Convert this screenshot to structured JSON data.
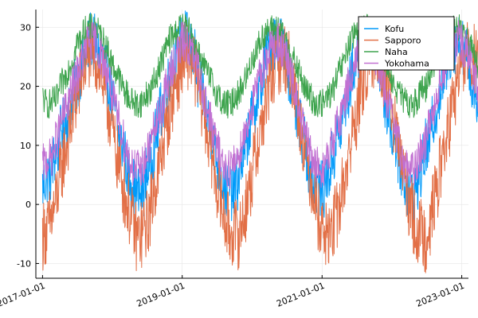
{
  "chart_data": {
    "type": "line",
    "title": "",
    "xlabel": "",
    "ylabel": "",
    "xlim": [
      "2016-11-27",
      "2023-02-05"
    ],
    "ylim": [
      -12.5,
      33
    ],
    "x_ticks": [
      "2017-01-01",
      "2019-01-01",
      "2021-01-01",
      "2023-01-01"
    ],
    "y_ticks": [
      -10,
      0,
      10,
      20,
      30
    ],
    "grid": true,
    "legend_position": "top-right",
    "x_start": "2017-01-01",
    "x_end": "2023-01-01",
    "x_step": "14 days",
    "series": [
      {
        "name": "Kofu",
        "color": "#009AFA",
        "values": [
          3.0,
          4.1,
          5.1,
          5.1,
          7.1,
          8.9,
          9.6,
          12.8,
          13.4,
          14.4,
          15.9,
          18.2,
          19.6,
          20.6,
          22.4,
          23.9,
          25.1,
          26.3,
          28.3,
          27.3,
          27.2,
          25.2,
          25.1,
          23.7,
          21.9,
          20.2,
          17.5,
          16.1,
          12.6,
          10.8,
          9.7,
          7.7,
          4.8,
          4.5,
          3.2,
          2.4,
          1.4,
          2.1,
          3.2,
          6.2,
          6.7,
          8.5,
          11.1,
          12.7,
          15.9,
          16.4,
          19.5,
          20.5,
          23.0,
          24.3,
          25.1,
          25.8,
          28.5,
          28.5,
          27.8,
          26.6,
          25.7,
          24.7,
          20.7,
          19.9,
          18.4,
          15.6,
          13.7,
          12.3,
          10.5,
          7.7,
          6.0,
          4.6,
          2.4,
          2.2,
          2.6,
          1.9,
          3.0,
          4.0,
          6.7,
          8.4,
          9.9,
          12.9,
          14.3,
          16.8,
          17.4,
          20.1,
          21.4,
          23.7,
          25.2,
          26.7,
          27.9,
          27.8,
          27.6,
          27.4,
          25.9,
          24.2,
          22.3,
          20.3,
          17.8,
          14.5,
          13.5,
          11.4,
          10.4,
          7.6,
          5.6,
          3.8,
          3.1,
          3.0,
          2.5,
          2.5,
          4.5,
          5.1,
          7.6,
          8.7,
          11.7,
          12.4,
          14.5,
          17.2,
          18.3,
          21.0,
          23.3,
          24.3,
          25.5,
          25.9,
          27.0,
          28.6,
          27.1,
          26.1,
          25.9,
          24.8,
          22.6,
          19.7,
          17.7,
          15.4,
          13.6,
          11.1,
          10.7,
          7.7,
          6.2,
          3.8,
          3.1,
          1.7,
          2.4,
          2.3,
          3.8,
          5.0,
          7.0,
          9.6,
          9.8,
          12.5,
          14.5,
          16.2,
          18.8,
          20.0,
          22.3,
          23.4,
          25.8,
          26.2,
          27.1,
          27.4,
          27.1,
          26.9,
          26.0,
          24.9,
          20.5,
          20.7,
          18.1,
          15.3,
          13.4,
          12.0,
          9.6,
          7.7,
          5.2,
          3.6,
          2.7,
          2.2
        ]
      },
      {
        "name": "Sapporo",
        "color": "#E26F46",
        "values": [
          -5.3,
          -4.6,
          -4.4,
          -2.8,
          -1.4,
          0.7,
          3.3,
          5.7,
          8.2,
          10.0,
          12.5,
          14.6,
          17.1,
          18.4,
          20.6,
          22.8,
          23.7,
          24.9,
          26.2,
          25.3,
          24.4,
          23.9,
          21.6,
          19.9,
          17.0,
          15.4,
          12.7,
          9.7,
          7.9,
          5.4,
          3.1,
          0.8,
          -0.2,
          -2.5,
          -3.8,
          -5.4,
          -5.5,
          -5.2,
          -3.8,
          -3.3,
          -1.6,
          0.8,
          3.4,
          4.8,
          7.7,
          10.1,
          12.2,
          15.2,
          16.1,
          19.5,
          21.0,
          22.2,
          24.3,
          24.9,
          25.1,
          25.2,
          23.9,
          22.6,
          20.6,
          17.7,
          16.8,
          13.4,
          11.1,
          9.1,
          6.5,
          3.9,
          1.6,
          -0.5,
          -2.6,
          -3.4,
          -4.9,
          -4.6,
          -4.9,
          -5.1,
          -4.1,
          -2.4,
          -0.2,
          2.0,
          4.1,
          7.1,
          9.7,
          11.6,
          13.7,
          16.2,
          18.3,
          20.4,
          22.3,
          24.2,
          24.3,
          25.1,
          25.5,
          24.4,
          23.8,
          21.1,
          19.2,
          17.4,
          14.6,
          12.3,
          9.5,
          7.3,
          4.3,
          3.2,
          0.2,
          -2.0,
          -3.4,
          -4.0,
          -5.9,
          -4.6,
          -4.6,
          -2.9,
          -1.6,
          0.1,
          2.6,
          4.8,
          7.6,
          9.8,
          12.9,
          14.5,
          17.0,
          19.0,
          21.2,
          23.2,
          24.4,
          24.6,
          25.4,
          25.1,
          24.9,
          22.5,
          21.0,
          19.6,
          16.8,
          14.2,
          12.2,
          8.9,
          7.2,
          4.6,
          2.2,
          0.1,
          -1.6,
          -3.5,
          -4.6,
          -4.9,
          -4.9,
          -5.6,
          -3.6,
          -2.4,
          0.1,
          2.3,
          5.0,
          7.2,
          10.0,
          11.6,
          13.8,
          16.2,
          18.5,
          20.9,
          23.2,
          23.6,
          25.4,
          25.0,
          24.6,
          24.8,
          23.4,
          21.7,
          20.1,
          17.2,
          15.3,
          12.3,
          10.2,
          7.4,
          5.0,
          2.9,
          0.6,
          -1.3,
          -3.4
        ]
      },
      {
        "name": "Naha",
        "color": "#3EA44E",
        "values": [
          18.2,
          17.3,
          16.9,
          17.2,
          17.5,
          17.6,
          18.7,
          20.5,
          20.9,
          22.2,
          23.5,
          24.2,
          25.6,
          27.5,
          27.8,
          28.7,
          29.5,
          29.9,
          29.8,
          30.1,
          29.8,
          28.9,
          28.2,
          27.5,
          26.3,
          25.0,
          23.9,
          22.7,
          22.1,
          20.7,
          19.8,
          19.0,
          18.3,
          17.5,
          17.5,
          16.8,
          17.1,
          17.3,
          17.9,
          18.8,
          19.1,
          19.8,
          21.3,
          22.5,
          23.7,
          25.0,
          26.2,
          27.5,
          28.5,
          28.5,
          29.2,
          30.0,
          30.1,
          29.6,
          29.7,
          29.0,
          28.1,
          27.1,
          26.1,
          24.7,
          23.5,
          23.1,
          21.3,
          21.1,
          19.7,
          18.9,
          18.4,
          17.2,
          17.0,
          17.0,
          16.7,
          17.5,
          18.6,
          18.5,
          19.5,
          20.7,
          21.4,
          22.5,
          24.4,
          25.1,
          26.5,
          27.2,
          28.2,
          29.1,
          29.1,
          29.6,
          29.7,
          29.8,
          29.7,
          28.8,
          28.2,
          27.6,
          26.2,
          25.3,
          24.0,
          22.8,
          22.1,
          20.7,
          19.6,
          18.7,
          18.6,
          17.3,
          17.3,
          16.7,
          17.1,
          17.1,
          17.9,
          18.6,
          19.0,
          20.0,
          21.2,
          22.8,
          23.4,
          25.1,
          26.5,
          27.4,
          28.1,
          28.9,
          29.3,
          29.4,
          29.6,
          30.1,
          29.6,
          29.2,
          28.5,
          27.2,
          26.2,
          25.3,
          23.9,
          22.5,
          21.7,
          20.3,
          19.8,
          19.0,
          18.0,
          17.7,
          16.9,
          16.9,
          17.1,
          17.3,
          17.8,
          18.9,
          19.4,
          19.8,
          21.3,
          22.6,
          23.6,
          25.1,
          25.8,
          27.7,
          28.1,
          28.6,
          29.1,
          29.5,
          29.5,
          29.7,
          29.7,
          28.9,
          28.1,
          27.1,
          26.3,
          25.2,
          24.2,
          23.0,
          21.6,
          20.9,
          19.9,
          18.9,
          18.4,
          17.8
        ]
      },
      {
        "name": "Yokohama",
        "color": "#C271D2",
        "values": [
          6.7,
          7.0,
          7.7,
          7.7,
          8.6,
          10.9,
          12.0,
          13.9,
          15.3,
          16.7,
          18.0,
          19.7,
          20.6,
          22.0,
          23.5,
          24.6,
          26.3,
          27.5,
          27.3,
          27.8,
          27.3,
          26.0,
          24.9,
          24.0,
          22.5,
          21.1,
          18.3,
          16.3,
          14.8,
          13.6,
          11.3,
          9.8,
          8.2,
          7.1,
          6.2,
          6.1,
          5.8,
          6.5,
          7.2,
          8.5,
          9.8,
          11.4,
          13.1,
          14.2,
          15.8,
          17.2,
          19.6,
          21.0,
          22.6,
          24.2,
          25.2,
          26.1,
          27.5,
          27.7,
          27.1,
          26.3,
          25.3,
          23.5,
          22.7,
          21.0,
          19.3,
          16.8,
          15.4,
          13.4,
          11.7,
          9.8,
          8.6,
          7.5,
          6.2,
          6.2,
          6.1,
          6.5,
          7.4,
          8.3,
          9.7,
          11.6,
          12.5,
          14.9,
          15.9,
          17.7,
          20.0,
          21.2,
          22.9,
          24.4,
          25.4,
          26.2,
          27.0,
          27.1,
          27.6,
          26.7,
          25.6,
          24.8,
          23.2,
          21.3,
          19.2,
          17.1,
          15.6,
          13.3,
          12.0,
          10.0,
          8.6,
          7.4,
          6.7,
          6.1,
          6.0,
          6.3,
          7.4,
          8.3,
          10.2,
          11.6,
          13.4,
          14.4,
          16.3,
          18.4,
          19.9,
          21.5,
          23.0,
          24.1,
          25.0,
          26.2,
          27.2,
          27.0,
          27.2,
          26.2,
          25.7,
          24.8,
          22.9,
          21.1,
          18.8,
          17.3,
          15.4,
          14.0,
          11.6,
          10.1,
          8.3,
          7.1,
          6.8,
          6.0,
          5.8,
          6.5,
          6.9,
          8.5,
          9.9,
          11.0,
          13.1,
          14.5,
          16.4,
          18.5,
          19.9,
          21.7,
          22.8,
          24.4,
          25.7,
          26.5,
          26.7,
          27.7,
          27.4,
          26.9,
          26.2,
          24.8,
          23.8,
          21.8,
          19.9,
          17.8,
          15.8,
          13.6,
          11.7,
          9.6,
          8.7,
          7.9,
          6.5,
          6.2
        ]
      }
    ]
  }
}
